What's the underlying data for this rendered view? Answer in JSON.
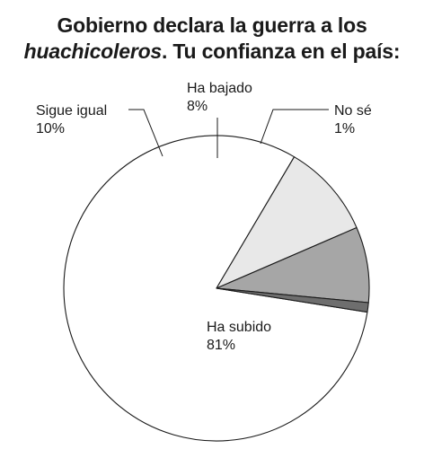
{
  "title": {
    "line1": "Gobierno declara la guerra a los",
    "line2_italic": "huachicoleros",
    "line2_rest": ". Tu confianza en el país:"
  },
  "chart_data": {
    "type": "pie",
    "title": "Gobierno declara la guerra a los huachicoleros. Tu confianza en el país:",
    "slices": [
      {
        "name": "Ha subido",
        "value": 81,
        "label": "81%",
        "color": "#ffffff"
      },
      {
        "name": "Sigue igual",
        "value": 10,
        "label": "10%",
        "color": "#e8e8e8"
      },
      {
        "name": "Ha bajado",
        "value": 8,
        "label": "8%",
        "color": "#a6a6a6"
      },
      {
        "name": "No sé",
        "value": 1,
        "label": "1%",
        "color": "#6e6e6e"
      }
    ]
  }
}
